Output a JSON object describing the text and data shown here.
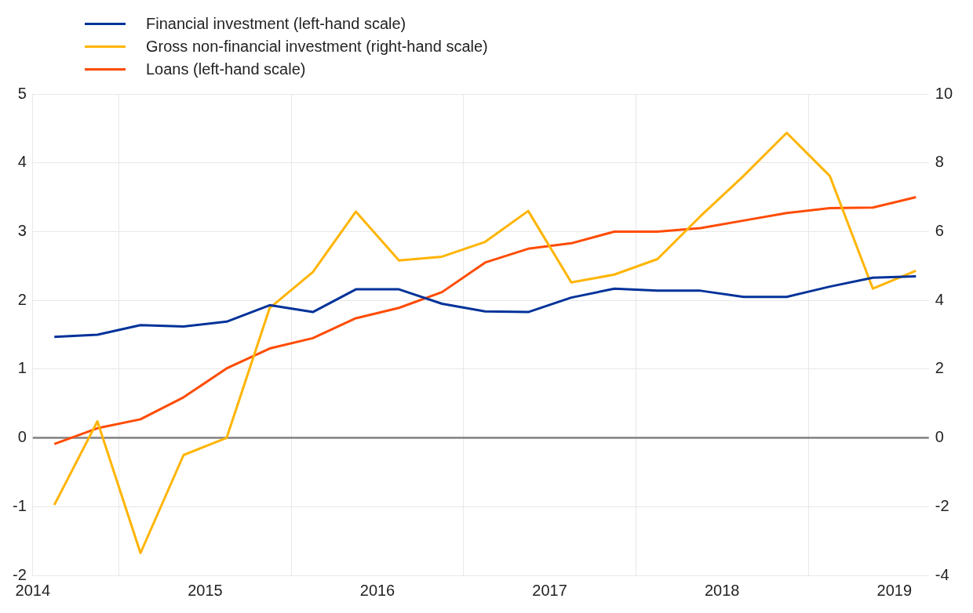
{
  "chart_data": {
    "type": "line",
    "x": [
      2014.625,
      2014.875,
      2015.125,
      2015.375,
      2015.625,
      2015.875,
      2016.125,
      2016.375,
      2016.625,
      2016.875,
      2017.125,
      2017.375,
      2017.625,
      2017.875,
      2018.125,
      2018.375,
      2018.625,
      2018.875,
      2019.125,
      2019.375,
      2019.625
    ],
    "series": [
      {
        "name": "Financial investment (left-hand scale)",
        "color": "#003299",
        "values": [
          1.47,
          1.5,
          1.64,
          1.62,
          1.69,
          1.93,
          1.83,
          2.16,
          2.16,
          1.95,
          1.84,
          1.83,
          2.04,
          2.17,
          2.14,
          2.14,
          2.05,
          2.05,
          2.2,
          2.33,
          2.35
        ]
      },
      {
        "name": "Gross non-financial investment (right-hand scale)",
        "color": "#ffb400",
        "axis": "y2",
        "values": [
          -1.95,
          0.48,
          -3.35,
          -0.5,
          0,
          3.78,
          4.82,
          6.58,
          5.16,
          5.27,
          5.7,
          6.6,
          4.52,
          4.75,
          5.2,
          6.45,
          7.62,
          8.87,
          7.62,
          4.34,
          4.86
        ]
      },
      {
        "name": "Loans (left-hand scale)",
        "color": "#ff4b00",
        "values": [
          -0.09,
          0.14,
          0.27,
          0.59,
          1.01,
          1.3,
          1.45,
          1.74,
          1.89,
          2.12,
          2.55,
          2.75,
          2.83,
          3.0,
          3.0,
          3.05,
          3.16,
          3.27,
          3.34,
          3.35,
          3.5
        ]
      }
    ],
    "xlim": [
      2014.5,
      2019.7
    ],
    "xticks": [
      {
        "value": 2014.5,
        "label": "2014"
      },
      {
        "value": 2015,
        "label": null
      },
      {
        "value": 2015.5,
        "label": "2015"
      },
      {
        "value": 2016,
        "label": null
      },
      {
        "value": 2016.5,
        "label": "2016"
      },
      {
        "value": 2017,
        "label": null
      },
      {
        "value": 2017.5,
        "label": "2017"
      },
      {
        "value": 2018,
        "label": null
      },
      {
        "value": 2018.5,
        "label": "2018"
      },
      {
        "value": 2019,
        "label": null
      },
      {
        "value": 2019.5,
        "label": "2019"
      }
    ],
    "ylim": [
      -2,
      5
    ],
    "yticks": [
      -2,
      -1,
      0,
      1,
      2,
      3,
      4,
      5
    ],
    "y2lim": [
      -4,
      10
    ],
    "y2ticks": [
      -4,
      -2,
      0,
      2,
      4,
      6,
      8,
      10
    ],
    "ref_lines": [
      {
        "axis": "y",
        "value": 0,
        "color": "#808080"
      }
    ],
    "grid": true,
    "legend": "top left",
    "marker": "none",
    "line_style": "solid"
  }
}
